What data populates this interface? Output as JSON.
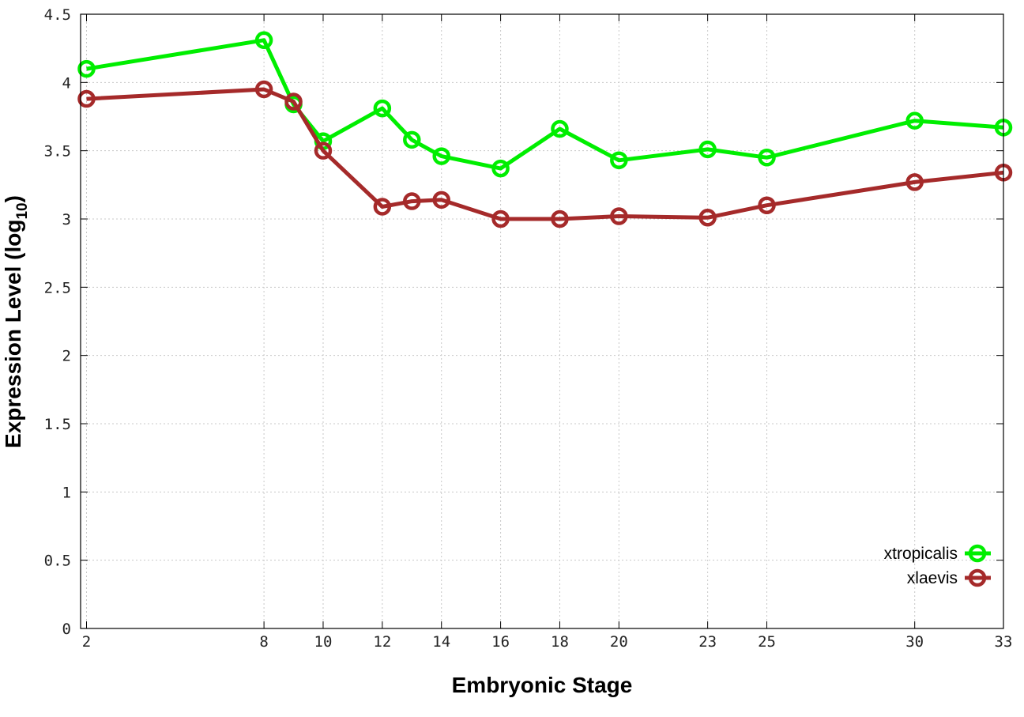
{
  "chart_data": {
    "type": "line",
    "xlabel": "Embryonic Stage",
    "ylabel": {
      "main": "Expression Level (log",
      "sub": "10",
      "end": ")"
    },
    "x": [
      2,
      8,
      9,
      10,
      12,
      13,
      14,
      16,
      18,
      20,
      23,
      25,
      30,
      33
    ],
    "x_tick_labels": [
      "2",
      "8",
      "10",
      "12",
      "14",
      "16",
      "18",
      "20",
      "23",
      "25",
      "30",
      "33"
    ],
    "ylim": [
      0,
      4.5
    ],
    "y_ticks": [
      0,
      0.5,
      1,
      1.5,
      2,
      2.5,
      3,
      3.5,
      4,
      4.5
    ],
    "y_tick_labels": [
      "0",
      "0.5",
      "1",
      "1.5",
      "2",
      "2.5",
      "3",
      "3.5",
      "4",
      "4.5"
    ],
    "grid": true,
    "legend_position": "bottom-right",
    "series": [
      {
        "name": "xtropicalis",
        "color": "#00ee00",
        "values": [
          4.1,
          4.31,
          3.84,
          3.57,
          3.81,
          3.58,
          3.46,
          3.37,
          3.66,
          3.43,
          3.51,
          3.45,
          3.72,
          3.67
        ]
      },
      {
        "name": "xlaevis",
        "color": "#a52a2a",
        "values": [
          3.88,
          3.95,
          3.86,
          3.5,
          3.09,
          3.13,
          3.14,
          3.0,
          3.0,
          3.02,
          3.01,
          3.1,
          3.27,
          3.34
        ]
      }
    ]
  }
}
